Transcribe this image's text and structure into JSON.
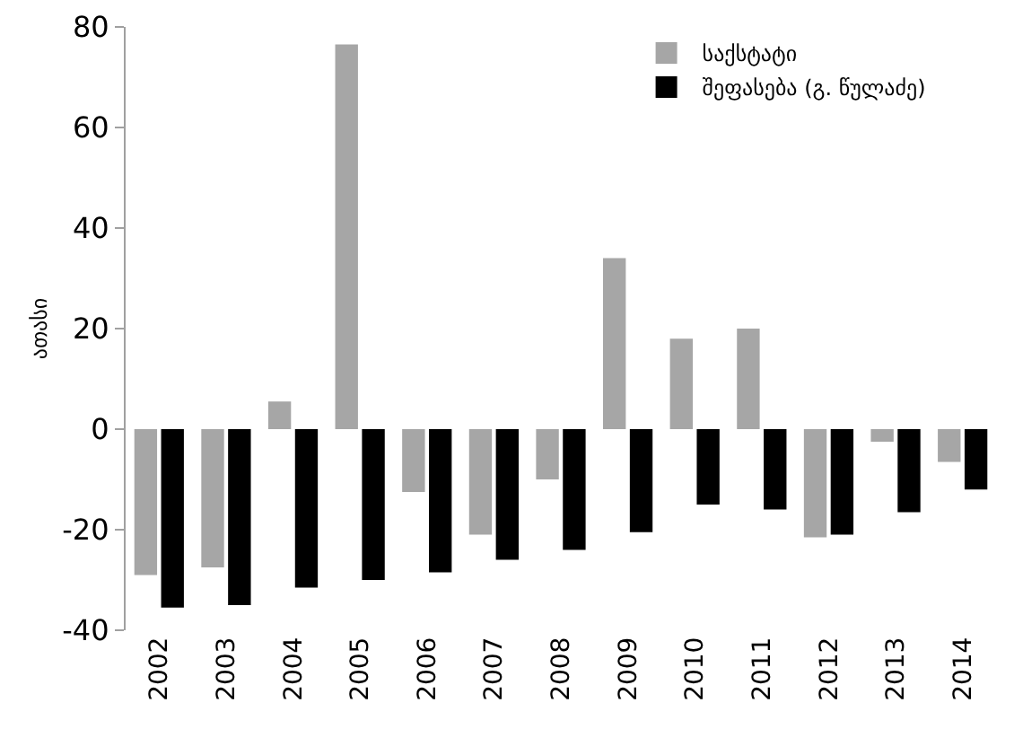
{
  "chart_data": {
    "type": "bar",
    "ylabel": "ათასი",
    "categories": [
      "2002",
      "2003",
      "2004",
      "2005",
      "2006",
      "2007",
      "2008",
      "2009",
      "2010",
      "2011",
      "2012",
      "2013",
      "2014"
    ],
    "series": [
      {
        "name": "საქსტატი",
        "color": "#a6a6a6",
        "values": [
          -29,
          -27.5,
          5.5,
          76.5,
          -12.5,
          -21,
          -10,
          34,
          18,
          20,
          -21.5,
          -2.5,
          -6.5
        ]
      },
      {
        "name": "შეფასება (გ. წულაძე)",
        "color": "#000000",
        "values": [
          -35.5,
          -35,
          -31.5,
          -30,
          -28.5,
          -26,
          -24,
          -20.5,
          -15,
          -16,
          -21,
          -16.5,
          -12
        ]
      }
    ],
    "ylim": [
      -40,
      80
    ],
    "yticks": [
      -40,
      -20,
      0,
      20,
      40,
      60,
      80
    ],
    "grid": false,
    "legend": "top right"
  }
}
